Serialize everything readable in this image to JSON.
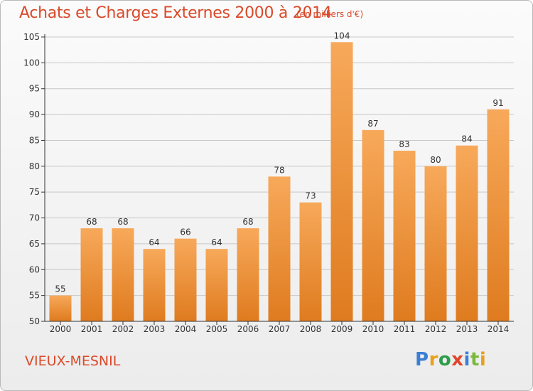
{
  "title": "Achats et Charges Externes 2000 à 2014",
  "subtitle": "(en milliers d'€)",
  "commune": "VIEUX-MESNIL",
  "logo": "Proxiti",
  "colors": {
    "bar_light": "#f7a95a",
    "bar_dark": "#e07e22",
    "text_accent": "#d94a2a",
    "axis": "#333333",
    "grid": "#c8c8c8"
  },
  "chart_data": {
    "type": "bar",
    "title": "Achats et Charges Externes 2000 à 2014",
    "subtitle": "(en milliers d'€)",
    "categories": [
      "2000",
      "2001",
      "2002",
      "2003",
      "2004",
      "2005",
      "2006",
      "2007",
      "2008",
      "2009",
      "2010",
      "2011",
      "2012",
      "2013",
      "2014"
    ],
    "values": [
      55,
      68,
      68,
      64,
      66,
      64,
      68,
      78,
      73,
      104,
      87,
      83,
      80,
      84,
      91
    ],
    "ylim": [
      50,
      105
    ],
    "yticks": [
      50,
      55,
      60,
      65,
      70,
      75,
      80,
      85,
      90,
      95,
      100,
      105
    ],
    "grid": true,
    "legend": "none"
  }
}
